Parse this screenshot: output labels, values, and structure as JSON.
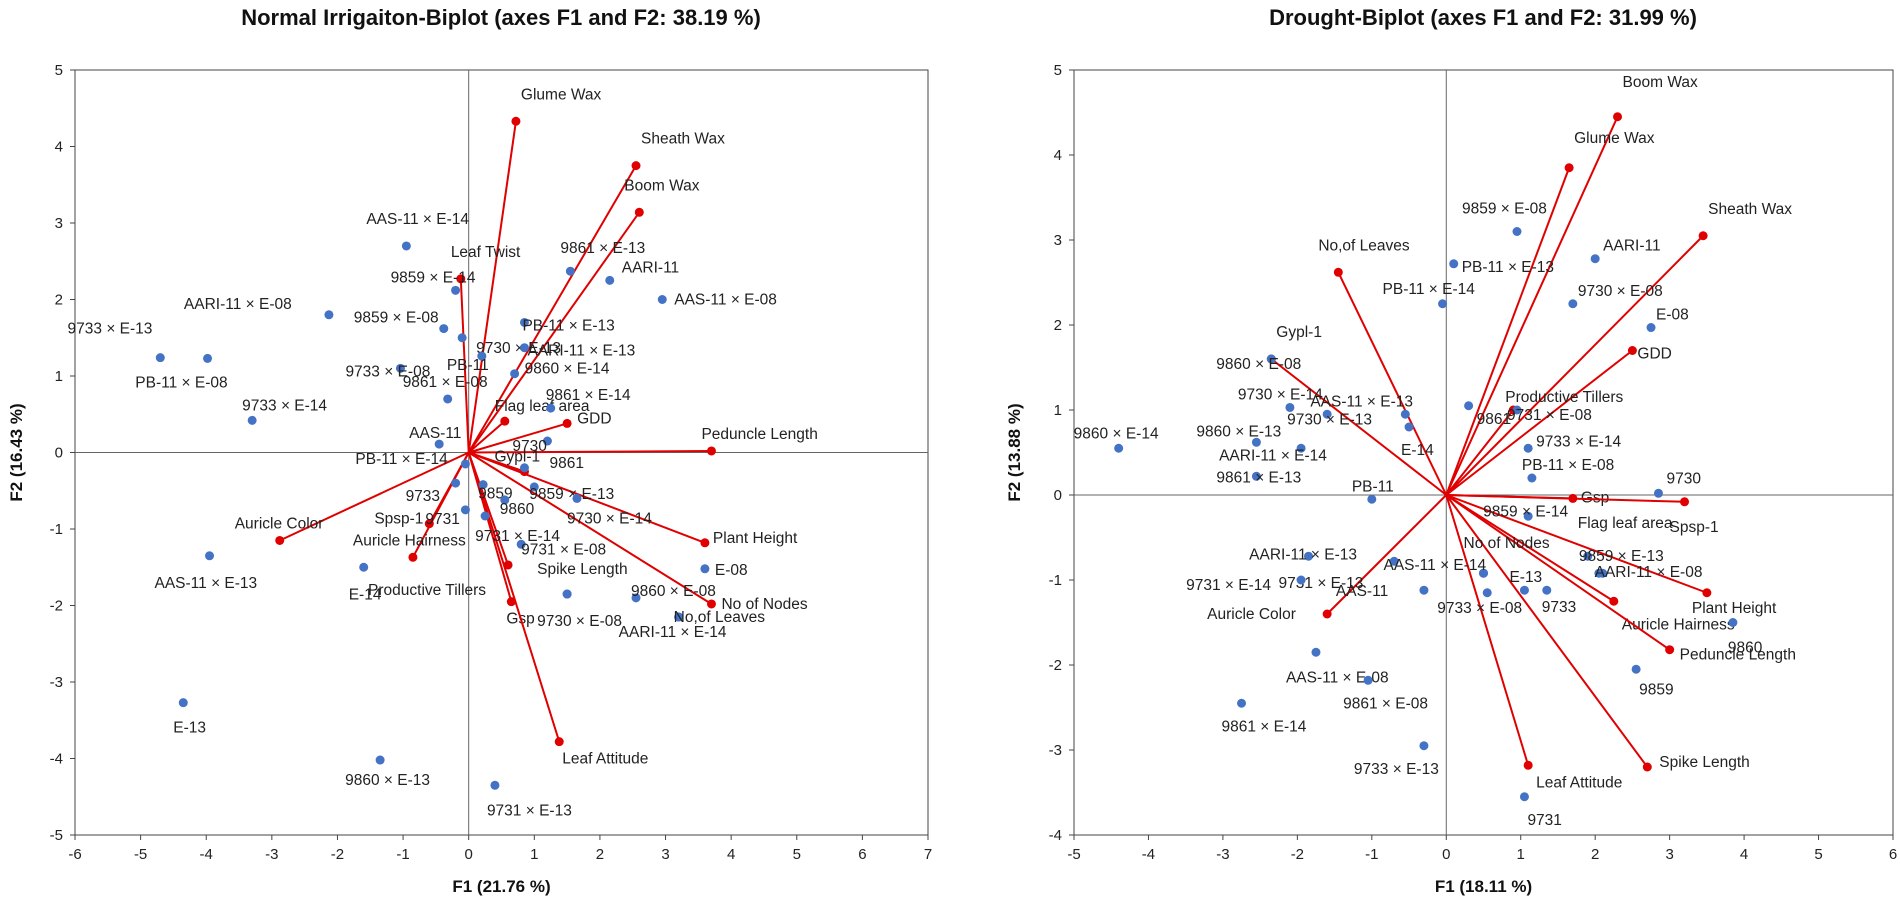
{
  "chart_data": [
    {
      "type": "scatter",
      "subtype": "biplot",
      "title": "Normal Irrigaiton-Biplot (axes F1 and F2: 38.19 %)",
      "xlabel": "F1 (21.76 %)",
      "ylabel": "F2 (16.43 %)",
      "xlim": [
        -6,
        7
      ],
      "ylim": [
        -5,
        5
      ],
      "x_ticks": [
        "-6",
        "-5",
        "-4",
        "-3",
        "-2",
        "-1",
        "0",
        "1",
        "2",
        "3",
        "4",
        "5",
        "6",
        "7"
      ],
      "y_ticks": [
        "5",
        "4",
        "3",
        "2",
        "1",
        "0",
        "-1",
        "-2",
        "-3",
        "-4",
        "-5"
      ],
      "grid": false,
      "colors": {
        "points": "#4472C4",
        "vectors": "#E00000"
      },
      "vectors": [
        {
          "label": "Glume Wax",
          "x": 0.72,
          "y": 4.33
        },
        {
          "label": "Sheath Wax",
          "x": 2.55,
          "y": 3.75
        },
        {
          "label": "Boom Wax",
          "x": 2.6,
          "y": 3.14
        },
        {
          "label": "Leaf Twist",
          "x": -0.12,
          "y": 2.27
        },
        {
          "label": "Flag leaf area",
          "x": 0.55,
          "y": 0.41
        },
        {
          "label": "GDD",
          "x": 1.5,
          "y": 0.38
        },
        {
          "label": "Peduncle Length",
          "x": 3.7,
          "y": 0.02
        },
        {
          "label": "Gypl-1",
          "x": 0.85,
          "y": -0.25
        },
        {
          "label": "Auricle Color",
          "x": -2.88,
          "y": -1.15
        },
        {
          "label": "Auricle Hairness",
          "x": -0.85,
          "y": -1.37
        },
        {
          "label": "Spsp-1",
          "x": -0.6,
          "y": -0.93
        },
        {
          "label": "Productive Tillers",
          "x": 0.6,
          "y": -1.47
        },
        {
          "label": "Gsp",
          "x": 0.65,
          "y": -1.95
        },
        {
          "label": "Plant Height",
          "x": 3.6,
          "y": -1.18
        },
        {
          "label": "No of Nodes",
          "x": 3.7,
          "y": -1.98
        },
        {
          "label": "Leaf Attitude",
          "x": 1.38,
          "y": -3.78
        }
      ],
      "points": [
        {
          "label": "AAS-11 × E-14",
          "x": -0.95,
          "y": 2.7
        },
        {
          "label": "9859 × E-14",
          "x": -0.2,
          "y": 2.12
        },
        {
          "label": "AARI-11 × E-08",
          "x": -2.13,
          "y": 1.8
        },
        {
          "label": "9859 × E-08",
          "x": -0.38,
          "y": 1.62
        },
        {
          "label": "9733 × E-13",
          "x": -3.98,
          "y": 1.23
        },
        {
          "label": "PB-11 × E-08",
          "x": -4.7,
          "y": 1.24
        },
        {
          "label": "9733 × E-08",
          "x": -1.04,
          "y": 1.1
        },
        {
          "label": "9733 × E-14",
          "x": -3.3,
          "y": 0.42
        },
        {
          "label": "9861 × E-08",
          "x": -0.32,
          "y": 0.7
        },
        {
          "label": "AAS-11",
          "x": -0.45,
          "y": 0.11
        },
        {
          "label": "9861 × E-13",
          "x": 1.55,
          "y": 2.37
        },
        {
          "label": "AARI-11",
          "x": 2.15,
          "y": 2.25
        },
        {
          "label": "AAS-11 × E-08",
          "x": 2.95,
          "y": 2.0
        },
        {
          "label": "PB-11 × E-13",
          "x": 0.85,
          "y": 1.7
        },
        {
          "label": "9730 × E-13",
          "x": -0.1,
          "y": 1.5
        },
        {
          "label": "AARI-11 × E-13",
          "x": 0.85,
          "y": 1.37
        },
        {
          "label": "PB-11",
          "x": 0.2,
          "y": 1.26
        },
        {
          "label": "9860 × E-14",
          "x": 0.7,
          "y": 1.03
        },
        {
          "label": "9861 × E-14",
          "x": 1.25,
          "y": 0.58
        },
        {
          "label": "9730",
          "x": 1.2,
          "y": 0.15
        },
        {
          "label": "PB-11 × E-14",
          "x": -0.05,
          "y": -0.15
        },
        {
          "label": "9861",
          "x": 0.85,
          "y": -0.2
        },
        {
          "label": "9733",
          "x": -0.2,
          "y": -0.4
        },
        {
          "label": "9859",
          "x": 0.22,
          "y": -0.42
        },
        {
          "label": "9860",
          "x": 0.55,
          "y": -0.62
        },
        {
          "label": "9859 × E-13",
          "x": 1.0,
          "y": -0.45
        },
        {
          "label": "9730 × E-14",
          "x": 1.65,
          "y": -0.6
        },
        {
          "label": "9731",
          "x": -0.05,
          "y": -0.75
        },
        {
          "label": "9731 × E-14",
          "x": 0.25,
          "y": -0.83
        },
        {
          "label": "9731 × E-08",
          "x": 0.8,
          "y": -1.2
        },
        {
          "label": "Spike Length",
          "x": 1.5,
          "y": -1.85
        },
        {
          "label": "AAS-11 × E-13",
          "x": -3.95,
          "y": -1.35
        },
        {
          "label": "E-14",
          "x": -1.6,
          "y": -1.5
        },
        {
          "label": "9730 × E-08",
          "x": 1.5,
          "y": -1.85
        },
        {
          "label": "9860 × E-08",
          "x": 2.55,
          "y": -1.9
        },
        {
          "label": "E-08",
          "x": 3.6,
          "y": -1.52
        },
        {
          "label": "AARI-11 × E-14",
          "x": 3.2,
          "y": -2.15
        },
        {
          "label": "No,of Leaves",
          "x": 3.2,
          "y": -2.15
        },
        {
          "label": "E-13",
          "x": -4.35,
          "y": -3.27
        },
        {
          "label": "9860 × E-13",
          "x": -1.35,
          "y": -4.02
        },
        {
          "label": "9731 × E-13",
          "x": 0.4,
          "y": -4.35
        }
      ]
    },
    {
      "type": "scatter",
      "subtype": "biplot",
      "title": "Drought-Biplot (axes F1 and F2: 31.99 %)",
      "xlabel": "F1 (18.11 %)",
      "ylabel": "F2 (13.88 %)",
      "xlim": [
        -5,
        6
      ],
      "ylim": [
        -4,
        5
      ],
      "x_ticks": [
        "-5",
        "-4",
        "-3",
        "-2",
        "-1",
        "0",
        "1",
        "2",
        "3",
        "4",
        "5",
        "6"
      ],
      "y_ticks": [
        "5",
        "4",
        "3",
        "2",
        "1",
        "0",
        "-1",
        "-2",
        "-3",
        "-4"
      ],
      "grid": false,
      "colors": {
        "points": "#4472C4",
        "vectors": "#E00000"
      },
      "vectors": [
        {
          "label": "Boom Wax",
          "x": 2.3,
          "y": 4.45
        },
        {
          "label": "Glume Wax",
          "x": 1.65,
          "y": 3.85
        },
        {
          "label": "Sheath Wax",
          "x": 3.45,
          "y": 3.05
        },
        {
          "label": "No,of Leaves",
          "x": -1.45,
          "y": 2.62
        },
        {
          "label": "GDD",
          "x": 2.5,
          "y": 1.7
        },
        {
          "label": "Gypl-1",
          "x": -2.35,
          "y": 1.6
        },
        {
          "label": "Productive Tillers",
          "x": 0.9,
          "y": 1.0
        },
        {
          "label": "Gsp",
          "x": 1.7,
          "y": -0.04
        },
        {
          "label": "Spsp-1",
          "x": 3.2,
          "y": -0.08
        },
        {
          "label": "Plant Height",
          "x": 3.5,
          "y": -1.15
        },
        {
          "label": "Auricle Hairness",
          "x": 2.25,
          "y": -1.25
        },
        {
          "label": "Peduncle Length",
          "x": 3.0,
          "y": -1.82
        },
        {
          "label": "Auricle Color",
          "x": -1.6,
          "y": -1.4
        },
        {
          "label": "Spike Length",
          "x": 2.7,
          "y": -3.2
        },
        {
          "label": "Leaf Attitude",
          "x": 1.1,
          "y": -3.18
        }
      ],
      "points": [
        {
          "label": "9859 × E-08",
          "x": 0.95,
          "y": 3.1
        },
        {
          "label": "PB-11 × E-13",
          "x": 0.1,
          "y": 2.72
        },
        {
          "label": "AARI-11",
          "x": 2.0,
          "y": 2.78
        },
        {
          "label": "PB-11 × E-14",
          "x": -0.05,
          "y": 2.25
        },
        {
          "label": "9730 × E-08",
          "x": 1.7,
          "y": 2.25
        },
        {
          "label": "E-08",
          "x": 2.75,
          "y": 1.97
        },
        {
          "label": "9860 × E-08",
          "x": -2.35,
          "y": 1.6
        },
        {
          "label": "9730 × E-14",
          "x": -2.1,
          "y": 1.03
        },
        {
          "label": "9730 × E-13",
          "x": -1.6,
          "y": 0.95
        },
        {
          "label": "AAS-11 × E-13",
          "x": -0.55,
          "y": 0.95
        },
        {
          "label": "9861",
          "x": 0.3,
          "y": 1.05
        },
        {
          "label": "E-14",
          "x": -0.5,
          "y": 0.8
        },
        {
          "label": "9731 × E-08",
          "x": 0.95,
          "y": 1.0
        },
        {
          "label": "9860 × E-14",
          "x": -4.4,
          "y": 0.55
        },
        {
          "label": "9860 × E-13",
          "x": -2.55,
          "y": 0.62
        },
        {
          "label": "AARI-11 × E-14",
          "x": -1.95,
          "y": 0.55
        },
        {
          "label": "9733 × E-14",
          "x": 1.1,
          "y": 0.55
        },
        {
          "label": "9861 × E-13",
          "x": -2.55,
          "y": 0.22
        },
        {
          "label": "PB-11 × E-08",
          "x": 1.15,
          "y": 0.2
        },
        {
          "label": "PB-11",
          "x": -1.0,
          "y": -0.05
        },
        {
          "label": "9730",
          "x": 2.85,
          "y": 0.02
        },
        {
          "label": "9859 × E-14",
          "x": 1.1,
          "y": -0.25
        },
        {
          "label": "9731 × E-13",
          "x": -1.85,
          "y": -0.72
        },
        {
          "label": "AARI-11 × E-13",
          "x": -0.7,
          "y": -0.78
        },
        {
          "label": "Flag leaf area",
          "x": 1.9,
          "y": -0.72
        },
        {
          "label": "9859 × E-13",
          "x": 2.05,
          "y": -0.92
        },
        {
          "label": "AARI-11 × E-08",
          "x": 2.1,
          "y": -0.92
        },
        {
          "label": "No of Nodes",
          "x": 0.5,
          "y": -0.92
        },
        {
          "label": "AAS-11 × E-14",
          "x": 0.5,
          "y": -0.92
        },
        {
          "label": "9731 × E-14",
          "x": -1.95,
          "y": -1.0
        },
        {
          "label": "AAS-11",
          "x": -0.3,
          "y": -1.12
        },
        {
          "label": "E-13",
          "x": 1.05,
          "y": -1.12
        },
        {
          "label": "9733",
          "x": 1.35,
          "y": -1.12
        },
        {
          "label": "9733 × E-08",
          "x": 0.55,
          "y": -1.15
        },
        {
          "label": "9860",
          "x": 3.85,
          "y": -1.5
        },
        {
          "label": "AAS-11 × E-08",
          "x": -1.75,
          "y": -1.85
        },
        {
          "label": "9859",
          "x": 2.55,
          "y": -2.05
        },
        {
          "label": "9861 × E-08",
          "x": -1.05,
          "y": -2.18
        },
        {
          "label": "9861 × E-14",
          "x": -2.75,
          "y": -2.45
        },
        {
          "label": "9733 × E-13",
          "x": -0.3,
          "y": -2.95
        },
        {
          "label": "9731",
          "x": 1.05,
          "y": -3.55
        }
      ]
    }
  ]
}
